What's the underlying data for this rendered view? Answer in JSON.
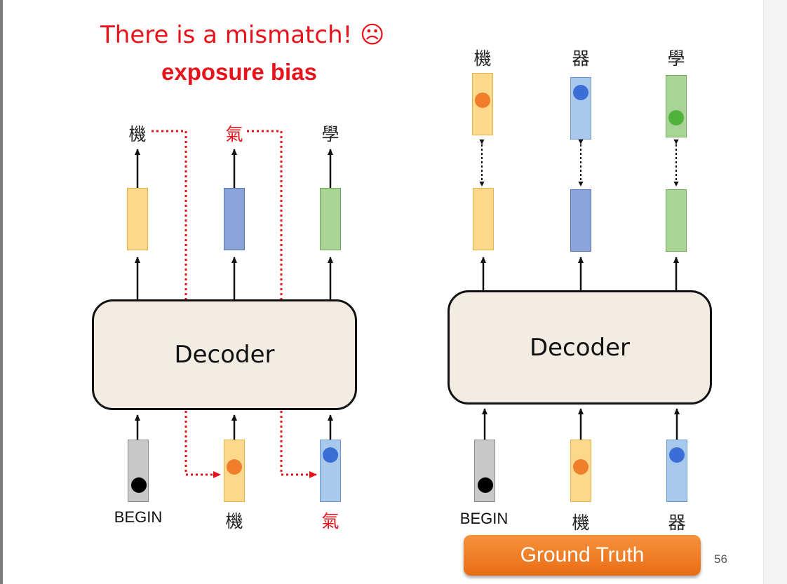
{
  "title": "There is a mismatch! ☹",
  "subtitle": "exposure bias",
  "left_diagram": {
    "decoder_label": "Decoder",
    "outputs": [
      "機",
      "氣",
      "學"
    ],
    "inputs": [
      "BEGIN",
      "機",
      "氣"
    ]
  },
  "right_diagram": {
    "decoder_label": "Decoder",
    "targets": [
      "機",
      "器",
      "學"
    ],
    "inputs": [
      "BEGIN",
      "機",
      "器"
    ]
  },
  "ground_truth_label": "Ground Truth",
  "page_number": "56",
  "colors": {
    "accent_red": "#e8121b",
    "orange": "#fcd98a",
    "blue": "#8da4db",
    "light_blue": "#a8c8ec",
    "green": "#a9d496",
    "gray": "#c8c8c8",
    "button_orange": "#ef7b22"
  }
}
